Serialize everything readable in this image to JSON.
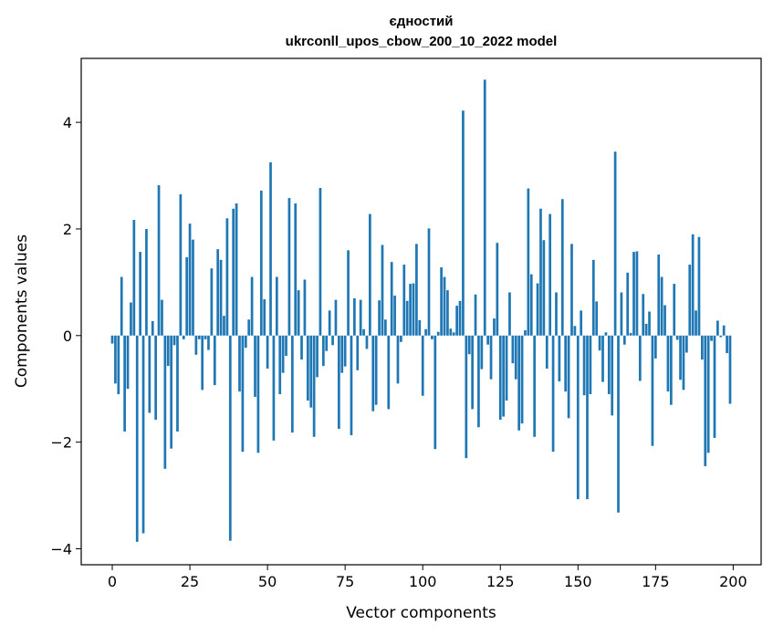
{
  "chart_data": {
    "type": "bar",
    "title": "єдностий",
    "subtitle": "ukrconll_upos_cbow_200_10_2022 model",
    "xlabel": "Vector components",
    "ylabel": "Components values",
    "xlim": [
      -10,
      209
    ],
    "ylim": [
      -4.3,
      5.2
    ],
    "xticks": [
      0,
      25,
      50,
      75,
      100,
      125,
      150,
      175,
      200
    ],
    "yticks": [
      -4,
      -2,
      0,
      2,
      4
    ],
    "xtick_labels": [
      "0",
      "25",
      "50",
      "75",
      "100",
      "125",
      "150",
      "175",
      "200"
    ],
    "ytick_labels": [
      "−4",
      "−2",
      "0",
      "2",
      "4"
    ],
    "grid": false,
    "bar_color": "#1f77b4",
    "values": [
      -0.15,
      -0.9,
      -1.1,
      1.1,
      -1.8,
      -1.0,
      0.62,
      2.17,
      -3.87,
      1.57,
      -3.71,
      2.0,
      -1.45,
      0.27,
      -1.58,
      2.82,
      0.67,
      -2.5,
      -0.57,
      -2.12,
      -0.18,
      -1.8,
      2.65,
      -0.07,
      1.47,
      2.1,
      1.8,
      -0.36,
      -0.07,
      -1.02,
      -0.07,
      -0.27,
      1.26,
      -0.93,
      1.62,
      1.42,
      0.37,
      2.2,
      -3.85,
      2.38,
      2.48,
      -1.05,
      -2.18,
      -0.23,
      0.3,
      1.1,
      -1.15,
      -2.2,
      2.72,
      0.68,
      -0.62,
      3.25,
      -1.97,
      1.1,
      -1.1,
      -0.7,
      -0.38,
      2.58,
      -1.82,
      2.48,
      0.85,
      -0.45,
      1.05,
      -1.22,
      -1.35,
      -1.9,
      -0.78,
      2.77,
      -0.57,
      -0.29,
      0.47,
      -0.18,
      0.67,
      -1.75,
      -0.7,
      -0.58,
      1.6,
      -1.87,
      0.7,
      -0.65,
      0.67,
      0.12,
      -0.25,
      2.28,
      -1.42,
      -1.3,
      0.66,
      1.7,
      0.3,
      -1.38,
      1.38,
      0.75,
      -0.9,
      -0.12,
      1.33,
      0.65,
      0.97,
      0.98,
      1.72,
      0.29,
      -1.13,
      0.12,
      2.01,
      -0.07,
      -2.13,
      0.07,
      1.28,
      1.1,
      0.85,
      0.13,
      0.06,
      0.56,
      0.65,
      4.22,
      -2.3,
      -0.35,
      -1.38,
      0.77,
      -1.72,
      -0.63,
      4.8,
      -0.17,
      -0.82,
      0.32,
      1.74,
      -1.58,
      -1.52,
      -1.22,
      0.81,
      -0.52,
      -0.82,
      -1.78,
      -1.65,
      0.1,
      2.76,
      1.15,
      -1.9,
      0.98,
      2.38,
      1.79,
      -0.62,
      2.28,
      -2.18,
      0.81,
      -0.86,
      2.56,
      -1.05,
      -1.55,
      1.72,
      0.18,
      -3.07,
      0.47,
      -1.12,
      -3.07,
      -1.1,
      1.42,
      0.64,
      -0.28,
      -0.87,
      0.06,
      -1.1,
      -1.5,
      3.45,
      -3.32,
      0.81,
      -0.17,
      1.18,
      0.05,
      1.57,
      1.58,
      -0.85,
      0.78,
      0.22,
      0.45,
      -2.07,
      -0.43,
      1.52,
      1.1,
      0.57,
      -1.05,
      -1.3,
      0.97,
      -0.08,
      -0.83,
      -1.02,
      -0.32,
      1.33,
      1.9,
      0.47,
      1.85,
      -0.45,
      -2.45,
      -2.2,
      -0.1,
      -1.92,
      0.28,
      -0.03,
      0.19,
      -0.33,
      -1.28
    ]
  }
}
